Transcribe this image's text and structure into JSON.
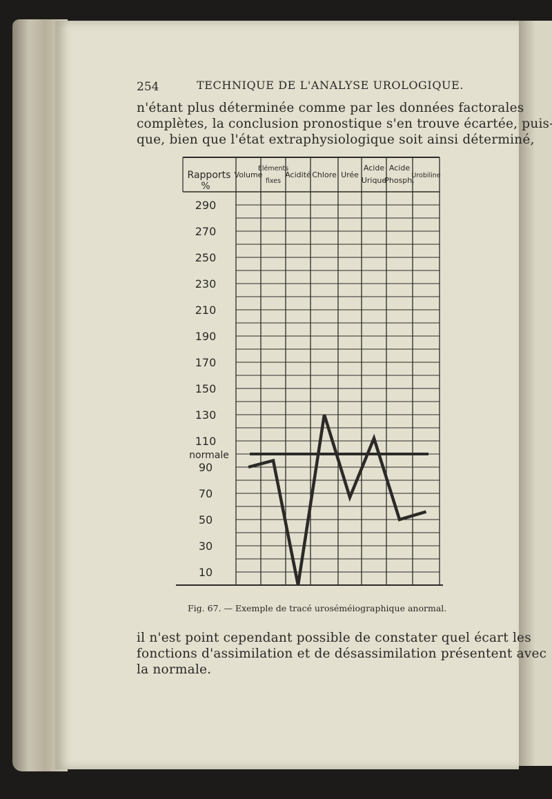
{
  "header": {
    "page_number": "254",
    "running_title": "TECHNIQUE DE L'ANALYSE UROLOGIQUE."
  },
  "text_before": [
    "n'étant plus déterminée comme par les données factorales",
    "complètes, la conclusion pronostique s'en trouve écartée, puis-",
    "que, bien que l'état extraphysiologique soit ainsi déterminé,"
  ],
  "figure_caption": "Fig. 67. — Exemple de tracé uroséméiographique anormal.",
  "text_after": [
    "il n'est point cependant possible de constater quel écart les",
    "fonctions d'assimilation et de désassimilation présentent avec",
    "la normale."
  ],
  "chart_data": {
    "type": "line",
    "title": "",
    "ylabel": [
      "Rapports",
      "%"
    ],
    "categories": [
      [
        "Volume"
      ],
      [
        "Eléments",
        "fixes"
      ],
      [
        "Acidité"
      ],
      [
        "Chlore"
      ],
      [
        "Urée"
      ],
      [
        "Acide",
        "Urique"
      ],
      [
        "Acide",
        "Phosph."
      ],
      [
        "Urobiline"
      ]
    ],
    "values": [
      90,
      95,
      0,
      130,
      67,
      112,
      50,
      56
    ],
    "normal_line": {
      "label": "normale",
      "value": 100
    },
    "yticks": [
      "290",
      "270",
      "250",
      "230",
      "210",
      "190",
      "170",
      "150",
      "130",
      "110",
      "90",
      "70",
      "50",
      "30",
      "10"
    ],
    "ylim": [
      0,
      300
    ],
    "grid": true,
    "colors": {
      "line": "#2b2a27",
      "paper": "#e3e0cf"
    }
  }
}
